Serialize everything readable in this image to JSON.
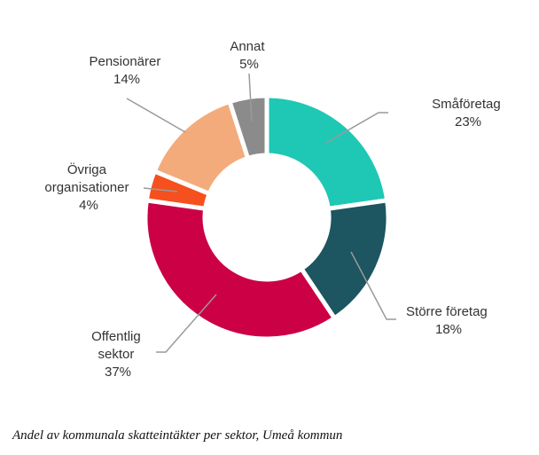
{
  "chart_data": {
    "type": "pie",
    "variant": "donut",
    "title": "",
    "caption": "Andel av kommunala skatteintäkter per sektor, Umeå kommun",
    "unit": "%",
    "slices": [
      {
        "name": "Småföretag",
        "value": 23,
        "label": "23%",
        "color": "#1ec8b4"
      },
      {
        "name": "Större företag",
        "value": 18,
        "label": "18%",
        "color": "#1d5560"
      },
      {
        "name": "Offentlig sektor",
        "value": 37,
        "label": "37%",
        "color": "#cc0044"
      },
      {
        "name": "Övriga organisationer",
        "value": 4,
        "label": "4%",
        "color": "#f5501e"
      },
      {
        "name": "Pensionärer",
        "value": 14,
        "label": "14%",
        "color": "#f4ab7c"
      },
      {
        "name": "Annat",
        "value": 5,
        "label": "5%",
        "color": "#8b8b8b"
      }
    ]
  }
}
